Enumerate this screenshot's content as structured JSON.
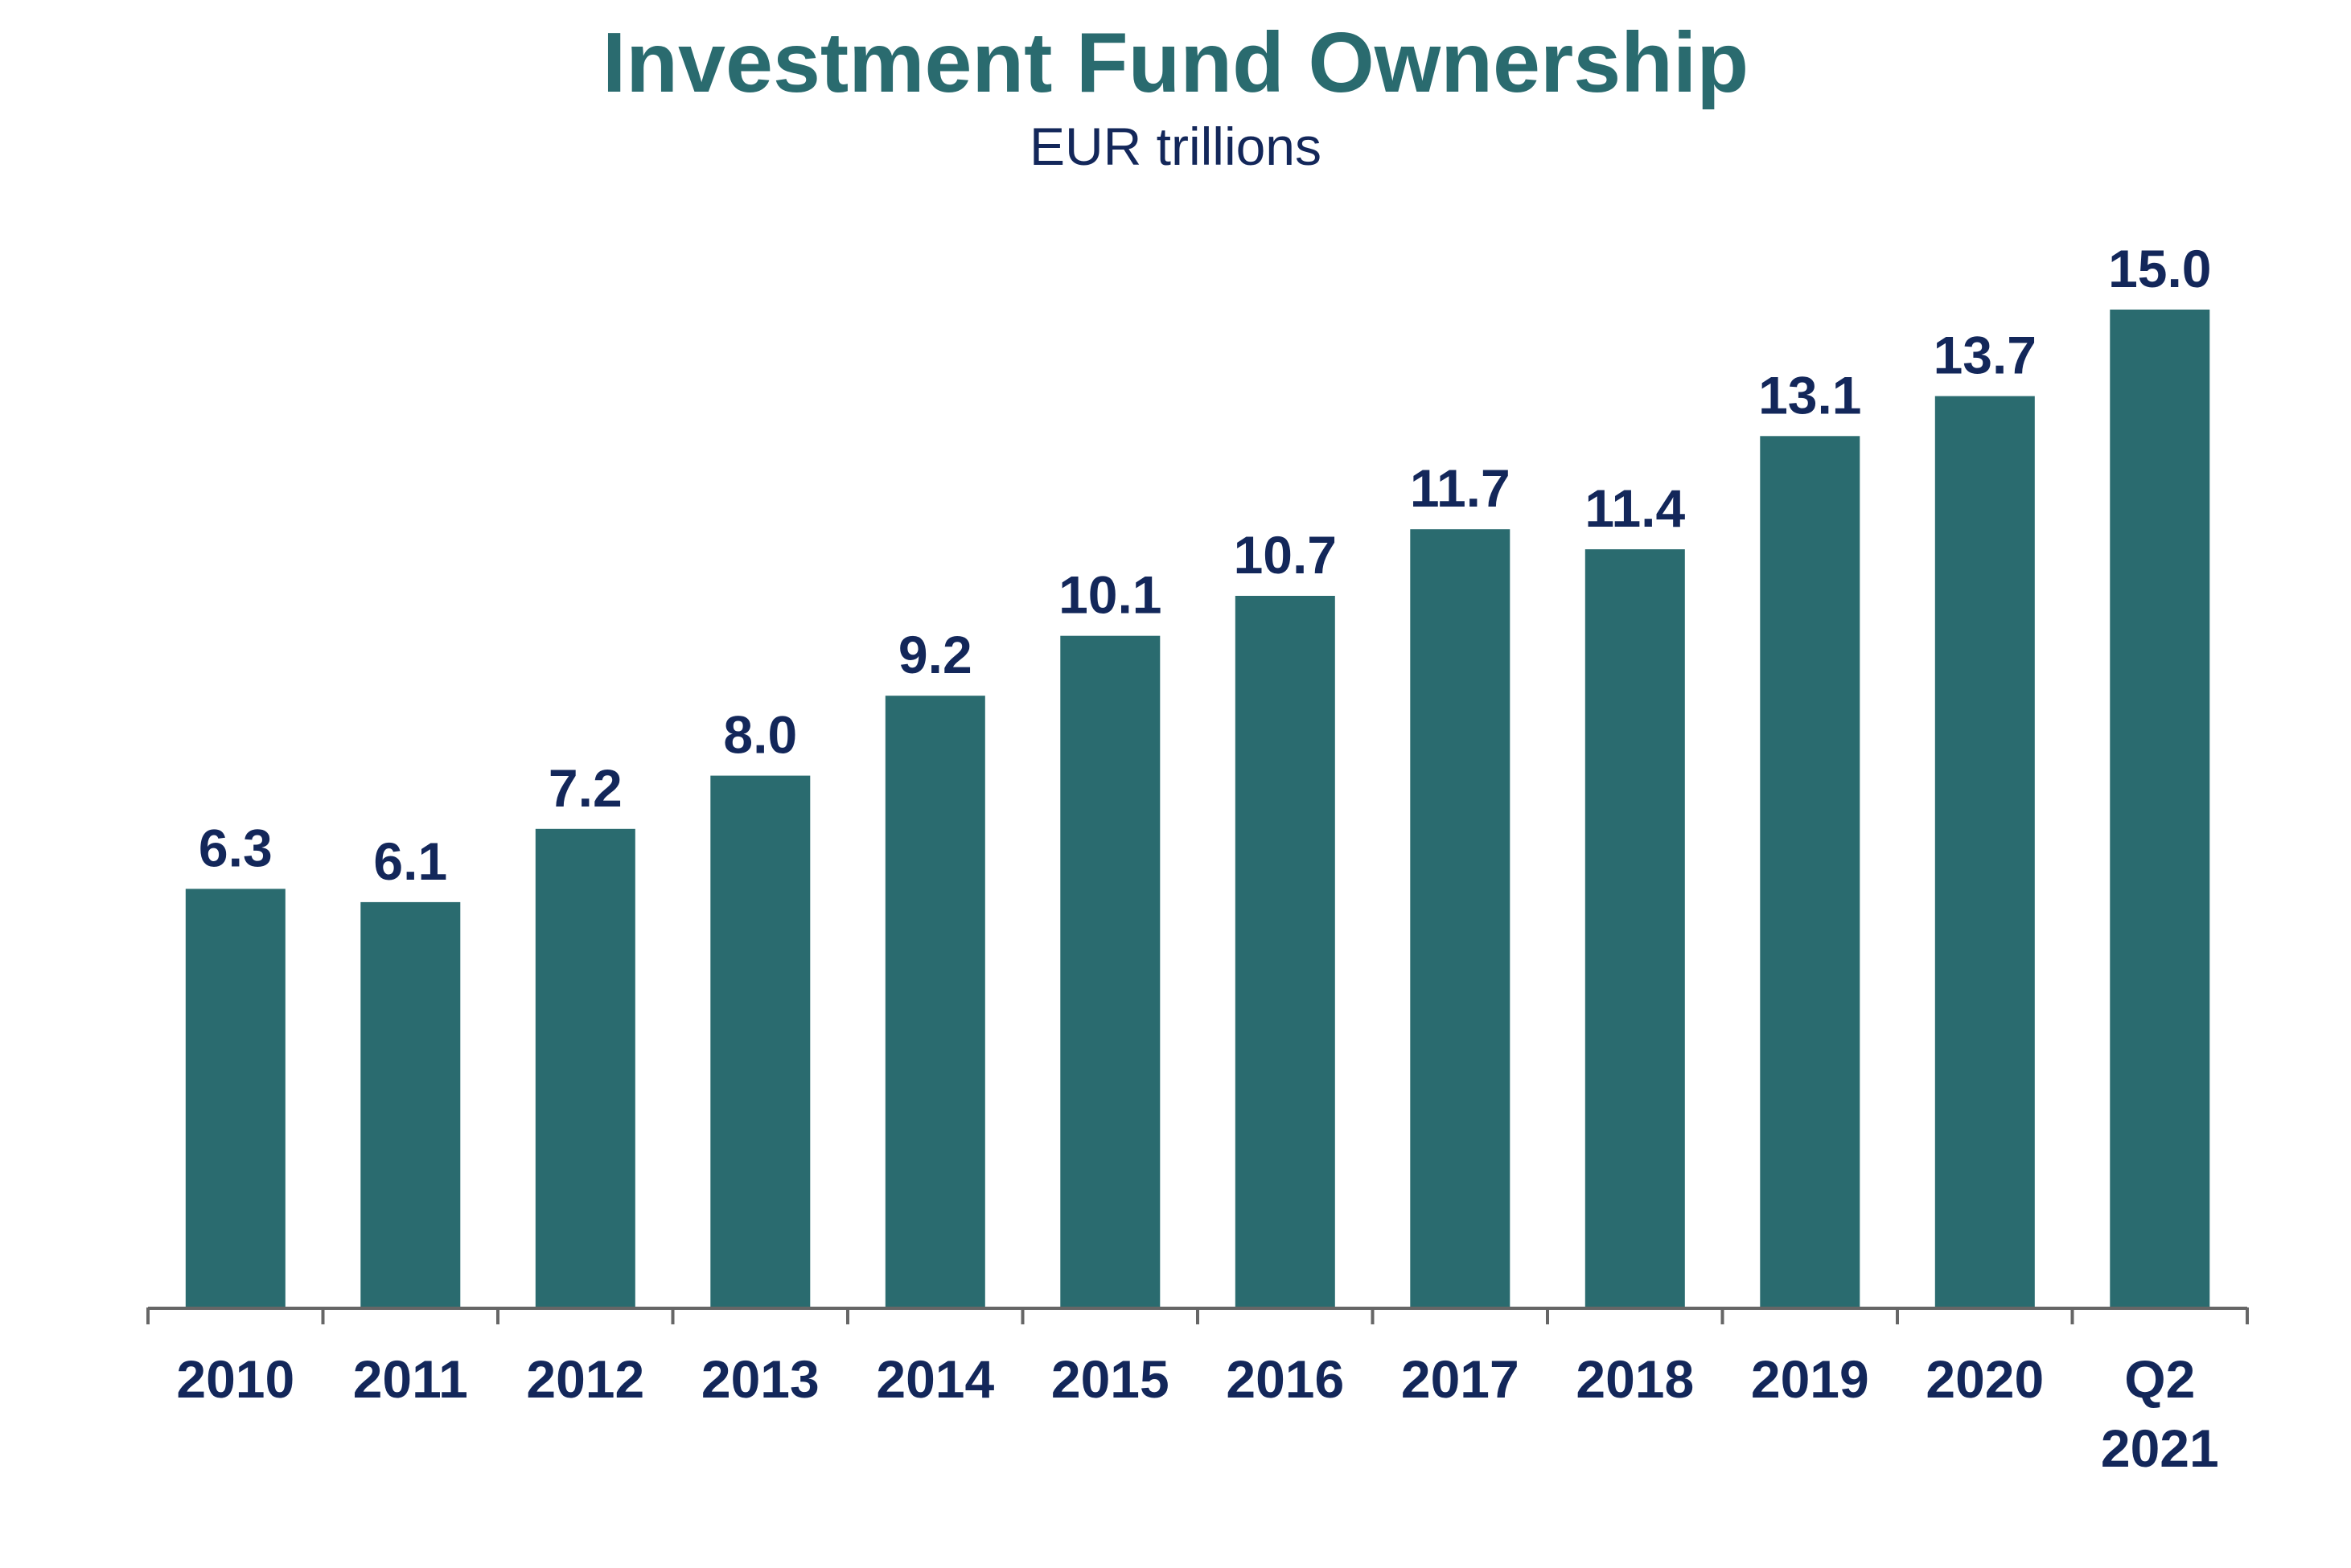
{
  "chart_data": {
    "type": "bar",
    "title": "Investment Fund Ownership",
    "subtitle": "EUR trillions",
    "xlabel": "",
    "ylabel": "",
    "categories": [
      "2010",
      "2011",
      "2012",
      "2013",
      "2014",
      "2015",
      "2016",
      "2017",
      "2018",
      "2019",
      "2020",
      "Q2\n2021"
    ],
    "values": [
      6.3,
      6.1,
      7.2,
      8.0,
      9.2,
      10.1,
      10.7,
      11.7,
      11.4,
      13.1,
      13.7,
      15.0
    ],
    "data_labels": [
      "6.3",
      "6.1",
      "7.2",
      "8.0",
      "9.2",
      "10.1",
      "10.7",
      "11.7",
      "11.4",
      "13.1",
      "13.7",
      "15.0"
    ],
    "ylim": [
      0,
      15.0
    ],
    "grid": false,
    "legend": "none",
    "colors": {
      "bar": "#2a6b6f",
      "title": "#2a6b6f",
      "text": "#13275a",
      "axis": "#666666"
    }
  }
}
